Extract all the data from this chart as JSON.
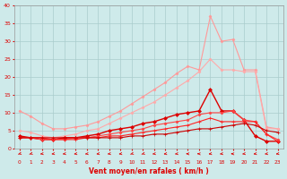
{
  "x": [
    0,
    1,
    2,
    3,
    4,
    5,
    6,
    7,
    8,
    9,
    10,
    11,
    12,
    13,
    14,
    15,
    16,
    17,
    18,
    19,
    20,
    21,
    22,
    23
  ],
  "series": [
    {
      "name": "rafales_light1",
      "color": "#ff9999",
      "linewidth": 0.8,
      "marker": "D",
      "markersize": 1.5,
      "y": [
        10.5,
        9.0,
        7.0,
        5.5,
        5.5,
        6.0,
        6.5,
        7.5,
        9.0,
        10.5,
        12.5,
        14.5,
        16.5,
        18.5,
        21.0,
        23.0,
        22.0,
        37.0,
        30.0,
        30.5,
        22.0,
        22.0,
        6.0,
        5.5
      ]
    },
    {
      "name": "rafales_light2",
      "color": "#ffaaaa",
      "linewidth": 0.8,
      "marker": "D",
      "markersize": 1.5,
      "y": [
        5.0,
        4.5,
        3.5,
        3.0,
        3.5,
        4.0,
        5.0,
        5.5,
        7.0,
        8.5,
        10.0,
        11.5,
        13.0,
        15.0,
        17.0,
        19.0,
        21.5,
        25.0,
        22.0,
        22.0,
        21.5,
        21.5,
        5.5,
        5.5
      ]
    },
    {
      "name": "moyen_dark",
      "color": "#dd0000",
      "linewidth": 1.0,
      "marker": "D",
      "markersize": 2.0,
      "y": [
        3.5,
        3.0,
        2.5,
        2.5,
        3.0,
        3.0,
        3.5,
        4.0,
        5.0,
        5.5,
        6.0,
        7.0,
        7.5,
        8.5,
        9.5,
        10.0,
        10.5,
        16.5,
        10.5,
        10.5,
        8.0,
        3.5,
        2.0,
        2.0
      ]
    },
    {
      "name": "moyen_mid1",
      "color": "#ff4444",
      "linewidth": 0.8,
      "marker": "D",
      "markersize": 1.5,
      "y": [
        3.0,
        3.0,
        2.5,
        2.5,
        2.5,
        3.0,
        3.0,
        3.5,
        4.0,
        4.5,
        5.0,
        5.5,
        6.5,
        7.0,
        7.5,
        8.0,
        9.5,
        10.0,
        10.0,
        10.5,
        8.0,
        7.5,
        4.0,
        2.5
      ]
    },
    {
      "name": "moyen_mid2",
      "color": "#ff2222",
      "linewidth": 0.8,
      "marker": "+",
      "markersize": 2.5,
      "y": [
        3.0,
        3.0,
        3.0,
        2.5,
        2.5,
        2.5,
        3.0,
        3.0,
        3.5,
        3.5,
        4.0,
        4.5,
        5.0,
        5.5,
        6.0,
        6.5,
        7.5,
        8.5,
        7.5,
        7.5,
        7.5,
        7.5,
        4.0,
        2.0
      ]
    },
    {
      "name": "moyen_low",
      "color": "#cc0000",
      "linewidth": 0.8,
      "marker": "+",
      "markersize": 2.5,
      "y": [
        3.0,
        3.0,
        3.0,
        3.0,
        3.0,
        3.0,
        3.0,
        3.0,
        3.0,
        3.0,
        3.5,
        3.5,
        4.0,
        4.0,
        4.5,
        5.0,
        5.5,
        5.5,
        6.0,
        6.5,
        7.0,
        6.5,
        5.0,
        4.5
      ]
    }
  ],
  "wind_directions": [
    225,
    225,
    247,
    247,
    247,
    247,
    247,
    247,
    247,
    247,
    225,
    225,
    247,
    247,
    247,
    270,
    270,
    247,
    247,
    270,
    247,
    247,
    247,
    247
  ],
  "xlim": [
    -0.5,
    23.5
  ],
  "ylim": [
    0,
    40
  ],
  "yticks": [
    0,
    5,
    10,
    15,
    20,
    25,
    30,
    35,
    40
  ],
  "xticks": [
    0,
    1,
    2,
    3,
    4,
    5,
    6,
    7,
    8,
    9,
    10,
    11,
    12,
    13,
    14,
    15,
    16,
    17,
    18,
    19,
    20,
    21,
    22,
    23
  ],
  "xlabel": "Vent moyen/en rafales ( km/h )",
  "bg_color": "#ceeaea",
  "grid_color": "#aacccc",
  "arrow_color": "#dd0000",
  "label_color": "#dd0000"
}
